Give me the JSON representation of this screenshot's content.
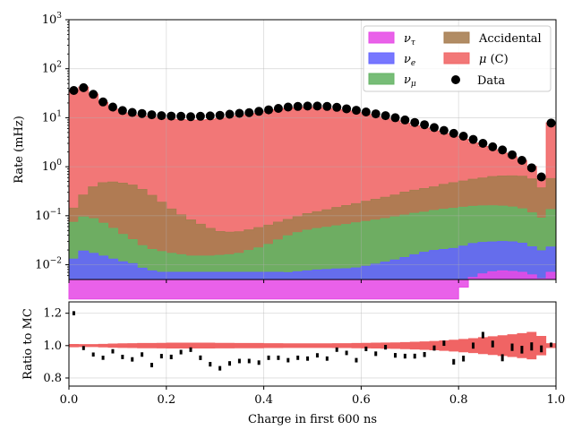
{
  "chart_data": [
    {
      "type": "area",
      "title": "",
      "xlabel": "",
      "ylabel": "Rate (mHz)",
      "yscale": "log",
      "xlim": [
        0,
        1
      ],
      "ylim": [
        0.005,
        1000
      ],
      "grid": true,
      "legend_position": "top-right",
      "yticks": [
        {
          "v": 0.01,
          "b": "10",
          "e": "−2"
        },
        {
          "v": 0.1,
          "b": "10",
          "e": "−1"
        },
        {
          "v": 1,
          "b": "10",
          "e": "0"
        },
        {
          "v": 10,
          "b": "10",
          "e": "1"
        },
        {
          "v": 100,
          "b": "10",
          "e": "2"
        },
        {
          "v": 1000,
          "b": "10",
          "e": "3"
        }
      ],
      "bin_edges": [
        0,
        0.02,
        0.04,
        0.06,
        0.08,
        0.1,
        0.12,
        0.14,
        0.16,
        0.18,
        0.2,
        0.22,
        0.24,
        0.26,
        0.28,
        0.3,
        0.32,
        0.34,
        0.36,
        0.38,
        0.4,
        0.42,
        0.44,
        0.46,
        0.48,
        0.5,
        0.52,
        0.54,
        0.56,
        0.58,
        0.6,
        0.62,
        0.64,
        0.66,
        0.68,
        0.7,
        0.72,
        0.74,
        0.76,
        0.78,
        0.8,
        0.82,
        0.84,
        0.86,
        0.88,
        0.9,
        0.92,
        0.94,
        0.96,
        0.98,
        1.0
      ],
      "stack": [
        {
          "name": "ν_τ",
          "label_base": "ν",
          "label_sub": "τ",
          "color": "#e64be6",
          "values": [
            0.002,
            0.002,
            0.002,
            0.002,
            0.002,
            0.002,
            0.002,
            0.002,
            0.002,
            0.002,
            0.002,
            0.002,
            0.002,
            0.002,
            0.002,
            0.002,
            0.002,
            0.002,
            0.002,
            0.002,
            0.002,
            0.002,
            0.002,
            0.002,
            0.002,
            0.002,
            0.002,
            0.002,
            0.002,
            0.002,
            0.002,
            0.002,
            0.002,
            0.002,
            0.002,
            0.002,
            0.002,
            0.002,
            0.002,
            0.002,
            0.0035,
            0.0055,
            0.0065,
            0.0072,
            0.0075,
            0.0073,
            0.007,
            0.0062,
            0.0052,
            0.007
          ]
        },
        {
          "name": "ν_e",
          "label_base": "ν",
          "label_sub": "e",
          "color": "#6464ff",
          "values": [
            0.011,
            0.017,
            0.015,
            0.013,
            0.011,
            0.0095,
            0.0085,
            0.0065,
            0.0055,
            0.005,
            0.005,
            0.005,
            0.005,
            0.005,
            0.005,
            0.005,
            0.005,
            0.005,
            0.005,
            0.005,
            0.005,
            0.005,
            0.0049,
            0.0052,
            0.0055,
            0.0058,
            0.006,
            0.0062,
            0.0063,
            0.0066,
            0.0073,
            0.0083,
            0.0093,
            0.0105,
            0.012,
            0.014,
            0.016,
            0.0175,
            0.0185,
            0.0195,
            0.0205,
            0.0215,
            0.022,
            0.022,
            0.0222,
            0.022,
            0.0205,
            0.017,
            0.014,
            0.016
          ]
        },
        {
          "name": "ν_μ",
          "label_base": "ν",
          "label_sub": "μ",
          "color": "#64b464",
          "values": [
            0.06,
            0.075,
            0.07,
            0.055,
            0.042,
            0.03,
            0.022,
            0.016,
            0.013,
            0.0115,
            0.01,
            0.009,
            0.008,
            0.008,
            0.008,
            0.0085,
            0.009,
            0.01,
            0.0125,
            0.015,
            0.019,
            0.025,
            0.032,
            0.038,
            0.043,
            0.047,
            0.05,
            0.054,
            0.058,
            0.063,
            0.067,
            0.071,
            0.076,
            0.082,
            0.089,
            0.096,
            0.1,
            0.108,
            0.115,
            0.12,
            0.125,
            0.128,
            0.13,
            0.13,
            0.127,
            0.121,
            0.111,
            0.091,
            0.07,
            0.11
          ]
        },
        {
          "name": "Accidental",
          "color": "#a67c4f",
          "values": [
            0.07,
            0.17,
            0.3,
            0.4,
            0.43,
            0.42,
            0.39,
            0.32,
            0.24,
            0.17,
            0.12,
            0.088,
            0.067,
            0.052,
            0.04,
            0.032,
            0.03,
            0.03,
            0.032,
            0.035,
            0.038,
            0.042,
            0.045,
            0.05,
            0.06,
            0.066,
            0.074,
            0.085,
            0.095,
            0.105,
            0.12,
            0.135,
            0.15,
            0.17,
            0.2,
            0.22,
            0.24,
            0.26,
            0.3,
            0.33,
            0.36,
            0.4,
            0.43,
            0.47,
            0.49,
            0.5,
            0.5,
            0.45,
            0.28,
            0.44
          ]
        },
        {
          "name": "μ (C)",
          "label_base": "μ",
          "label_suffix": " (C)",
          "color": "#f06464",
          "values": [
            35,
            42,
            30,
            20,
            14.5,
            12,
            11,
            10.5,
            10,
            9.5,
            9.2,
            9.0,
            8.9,
            8.9,
            9.1,
            9.6,
            10.2,
            10.9,
            11.5,
            12.2,
            13.5,
            14.5,
            15.3,
            15.8,
            16.1,
            15.9,
            15.3,
            14.5,
            13.5,
            12.5,
            11.4,
            10.2,
            9.2,
            8.4,
            7.4,
            6.5,
            5.8,
            5.0,
            4.3,
            3.7,
            3.1,
            2.5,
            2.0,
            1.6,
            1.25,
            0.95,
            0.7,
            0.45,
            0.2,
            7.3
          ]
        }
      ],
      "data_series": {
        "name": "Data",
        "label": "Data",
        "color": "#000000",
        "x": [
          0.01,
          0.03,
          0.05,
          0.07,
          0.09,
          0.11,
          0.13,
          0.15,
          0.17,
          0.19,
          0.21,
          0.23,
          0.25,
          0.27,
          0.29,
          0.31,
          0.33,
          0.35,
          0.37,
          0.39,
          0.41,
          0.43,
          0.45,
          0.47,
          0.49,
          0.51,
          0.53,
          0.55,
          0.57,
          0.59,
          0.61,
          0.63,
          0.65,
          0.67,
          0.69,
          0.71,
          0.73,
          0.75,
          0.77,
          0.79,
          0.81,
          0.83,
          0.85,
          0.87,
          0.89,
          0.91,
          0.93,
          0.95,
          0.97,
          0.99
        ],
        "y": [
          36,
          41,
          30,
          21,
          16.5,
          14,
          12.8,
          12.2,
          11.5,
          11.0,
          10.8,
          10.7,
          10.5,
          10.7,
          10.9,
          11.2,
          11.8,
          12.3,
          12.7,
          13.5,
          14.5,
          15.5,
          16.5,
          17,
          17.3,
          17.3,
          17,
          16.3,
          15.2,
          14.2,
          13.1,
          12,
          11,
          10,
          9,
          8,
          7.2,
          6.3,
          5.5,
          4.8,
          4.2,
          3.6,
          3.0,
          2.55,
          2.2,
          1.75,
          1.35,
          0.95,
          0.62,
          7.8
        ]
      }
    },
    {
      "type": "scatter",
      "title": "",
      "xlabel": "Charge in first 600 ns",
      "ylabel": "Ratio to MC",
      "xlim": [
        0,
        1
      ],
      "ylim": [
        0.75,
        1.27
      ],
      "grid": true,
      "xticks": [
        "0.0",
        "0.2",
        "0.4",
        "0.6",
        "0.8",
        "1.0"
      ],
      "yticks": [
        "0.8",
        "1.0",
        "1.2"
      ],
      "band": {
        "color": "#f06464",
        "half_width": [
          0.01,
          0.009,
          0.009,
          0.011,
          0.013,
          0.014,
          0.015,
          0.016,
          0.016,
          0.017,
          0.018,
          0.018,
          0.018,
          0.018,
          0.018,
          0.017,
          0.017,
          0.016,
          0.016,
          0.016,
          0.015,
          0.015,
          0.014,
          0.014,
          0.014,
          0.014,
          0.014,
          0.015,
          0.015,
          0.016,
          0.017,
          0.018,
          0.019,
          0.02,
          0.022,
          0.024,
          0.026,
          0.029,
          0.032,
          0.036,
          0.041,
          0.046,
          0.052,
          0.058,
          0.064,
          0.07,
          0.077,
          0.085,
          0.06,
          0.015
        ]
      },
      "ratio": [
        1.2,
        0.985,
        0.945,
        0.925,
        0.965,
        0.93,
        0.915,
        0.945,
        0.88,
        0.935,
        0.93,
        0.96,
        0.975,
        0.925,
        0.885,
        0.86,
        0.89,
        0.905,
        0.905,
        0.895,
        0.925,
        0.925,
        0.91,
        0.925,
        0.92,
        0.94,
        0.92,
        0.975,
        0.955,
        0.91,
        0.98,
        0.95,
        0.99,
        0.94,
        0.935,
        0.935,
        0.945,
        0.985,
        1.015,
        0.9,
        0.92,
        1.0,
        1.065,
        1.01,
        0.925,
        0.99,
        0.975,
        0.995,
        0.98,
        1.005
      ]
    }
  ]
}
